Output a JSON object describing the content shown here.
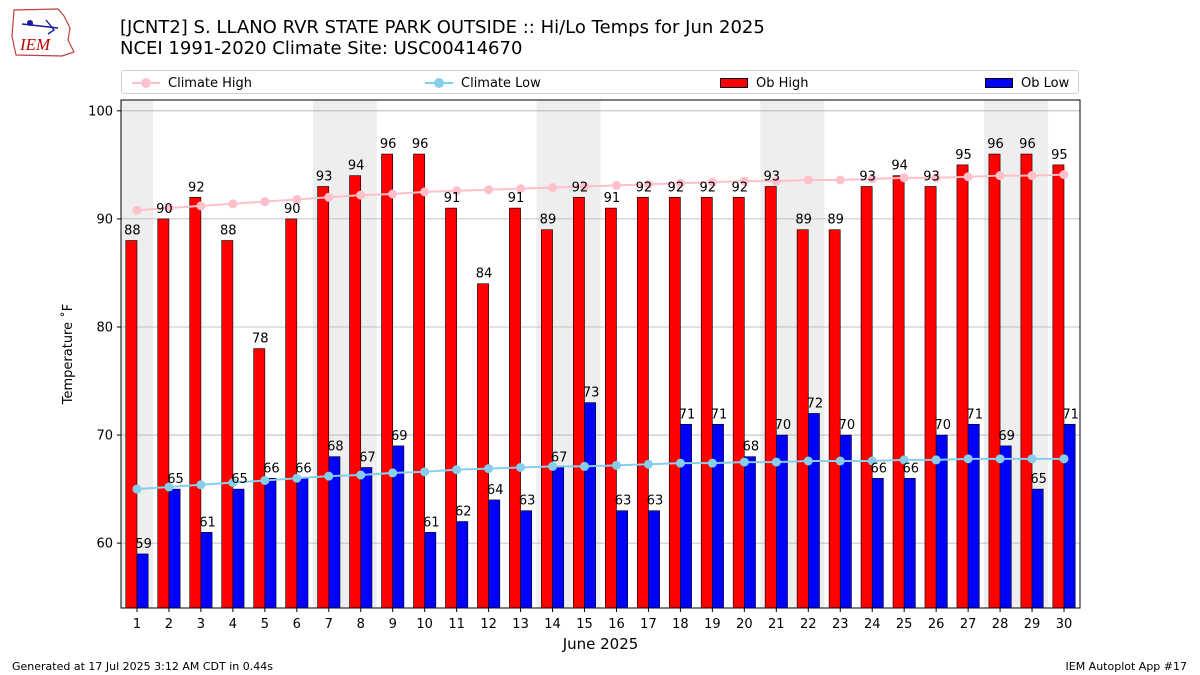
{
  "header": {
    "title_line1": "[JCNT2] S. LLANO RVR STATE PARK OUTSIDE :: Hi/Lo Temps for Jun 2025",
    "title_line2": "NCEI 1991-2020 Climate Site: USC00414670",
    "logo_text": "IEM"
  },
  "legend": {
    "climate_high": "Climate High",
    "climate_low": "Climate Low",
    "ob_high": "Ob High",
    "ob_low": "Ob Low"
  },
  "colors": {
    "climate_high": "#ffc0cb",
    "climate_low": "#87ceeb",
    "ob_high": "#ff0000",
    "ob_low": "#0000ff",
    "weekend_band": "#eeeeee",
    "grid": "#b0b0b0"
  },
  "footer": {
    "left": "Generated at 17 Jul 2025 3:12 AM CDT in 0.44s",
    "right": "IEM Autoplot App #17"
  },
  "chart_data": {
    "type": "bar",
    "title": "[JCNT2] S. LLANO RVR STATE PARK OUTSIDE :: Hi/Lo Temps for Jun 2025",
    "xlabel": "June 2025",
    "ylabel": "Temperature ˚F",
    "ylim": [
      54,
      101
    ],
    "yticks": [
      60,
      70,
      80,
      90,
      100
    ],
    "categories": [
      "1",
      "2",
      "3",
      "4",
      "5",
      "6",
      "7",
      "8",
      "9",
      "10",
      "11",
      "12",
      "13",
      "14",
      "15",
      "16",
      "17",
      "18",
      "19",
      "20",
      "21",
      "22",
      "23",
      "24",
      "25",
      "26",
      "27",
      "28",
      "29",
      "30"
    ],
    "series": [
      {
        "name": "Ob High",
        "kind": "bar",
        "values": [
          88,
          90,
          92,
          88,
          78,
          90,
          93,
          94,
          96,
          96,
          91,
          84,
          91,
          89,
          92,
          91,
          92,
          92,
          92,
          92,
          93,
          89,
          89,
          93,
          94,
          93,
          95,
          96,
          96,
          95
        ]
      },
      {
        "name": "Ob Low",
        "kind": "bar",
        "values": [
          59,
          65,
          61,
          65,
          66,
          66,
          68,
          67,
          69,
          61,
          62,
          64,
          63,
          67,
          73,
          63,
          63,
          71,
          71,
          68,
          70,
          72,
          70,
          66,
          66,
          70,
          71,
          69,
          65,
          71
        ]
      },
      {
        "name": "Climate High",
        "kind": "line",
        "values": [
          90.8,
          91.0,
          91.2,
          91.4,
          91.6,
          91.8,
          92.0,
          92.2,
          92.3,
          92.5,
          92.6,
          92.7,
          92.8,
          92.9,
          93.0,
          93.1,
          93.2,
          93.3,
          93.4,
          93.5,
          93.5,
          93.6,
          93.6,
          93.7,
          93.8,
          93.8,
          93.9,
          94.0,
          94.0,
          94.1
        ]
      },
      {
        "name": "Climate Low",
        "kind": "line",
        "values": [
          65.0,
          65.2,
          65.4,
          65.6,
          65.8,
          66.0,
          66.2,
          66.3,
          66.5,
          66.6,
          66.8,
          66.9,
          67.0,
          67.1,
          67.1,
          67.2,
          67.3,
          67.4,
          67.4,
          67.5,
          67.5,
          67.6,
          67.6,
          67.6,
          67.7,
          67.7,
          67.8,
          67.8,
          67.8,
          67.8
        ]
      }
    ],
    "weekend_days": [
      1,
      7,
      8,
      14,
      15,
      21,
      22,
      28,
      29
    ]
  }
}
